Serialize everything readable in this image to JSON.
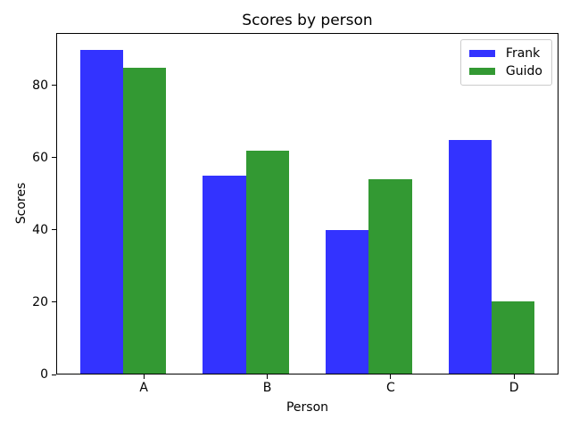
{
  "chart_data": {
    "type": "bar",
    "title": "Scores by person",
    "xlabel": "Person",
    "ylabel": "Scores",
    "categories": [
      "A",
      "B",
      "C",
      "D"
    ],
    "series": [
      {
        "name": "Frank",
        "values": [
          90,
          55,
          40,
          65
        ],
        "color": "#3333ff"
      },
      {
        "name": "Guido",
        "values": [
          85,
          62,
          54,
          20
        ],
        "color": "#339933"
      }
    ],
    "yticks": [
      0,
      20,
      40,
      60,
      80
    ],
    "ylim": [
      0,
      94.5
    ],
    "xlim": [
      0.64,
      4.71
    ],
    "group_positions": [
      1,
      2,
      3,
      4
    ],
    "bar_width": 0.35,
    "tick_offset": 0.35,
    "grid": false,
    "legend": {
      "position": "upper right",
      "entries": [
        "Frank",
        "Guido"
      ]
    },
    "background_color": "#ffffff",
    "axis_color": "#000000",
    "legend_border_color": "#cccccc"
  }
}
